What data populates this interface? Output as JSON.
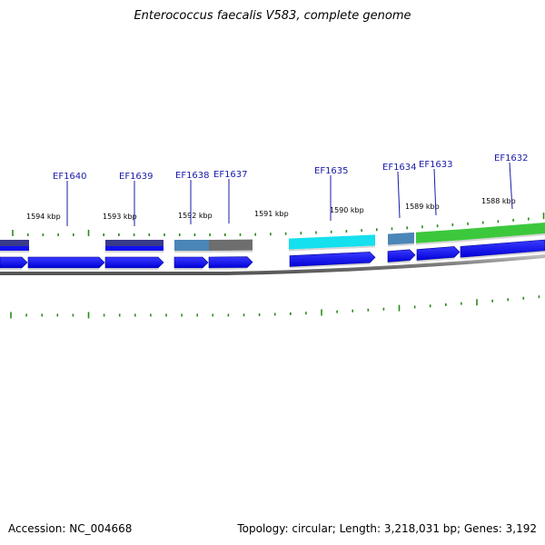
{
  "title": "Enterococcus faecalis V583, complete genome",
  "footer": {
    "accession": "Accession: NC_004668",
    "summary": "Topology: circular; Length: 3,218,031 bp; Genes: 3,192"
  },
  "scale_labels": [
    "1594 kbp",
    "1593 kbp",
    "1592 kbp",
    "1591 kbp",
    "1590 kbp",
    "1589 kbp",
    "1588 kbp"
  ],
  "genes": [
    {
      "label": "EF1640"
    },
    {
      "label": "EF1639"
    },
    {
      "label": "EF1638"
    },
    {
      "label": "EF1637"
    },
    {
      "label": "EF1635"
    },
    {
      "label": "EF1634"
    },
    {
      "label": "EF1633"
    },
    {
      "label": "EF1632"
    }
  ],
  "colors": {
    "cds": "#1010f0",
    "tick": "#2a8a1a",
    "backbone": "#7a7a7a",
    "label": "#1a1aa8",
    "category_navy": "#3a3a8c",
    "category_steel": "#4a86b8",
    "category_gray": "#6e6e6e",
    "category_cyan": "#14e0ee",
    "category_green": "#3cc83c"
  }
}
